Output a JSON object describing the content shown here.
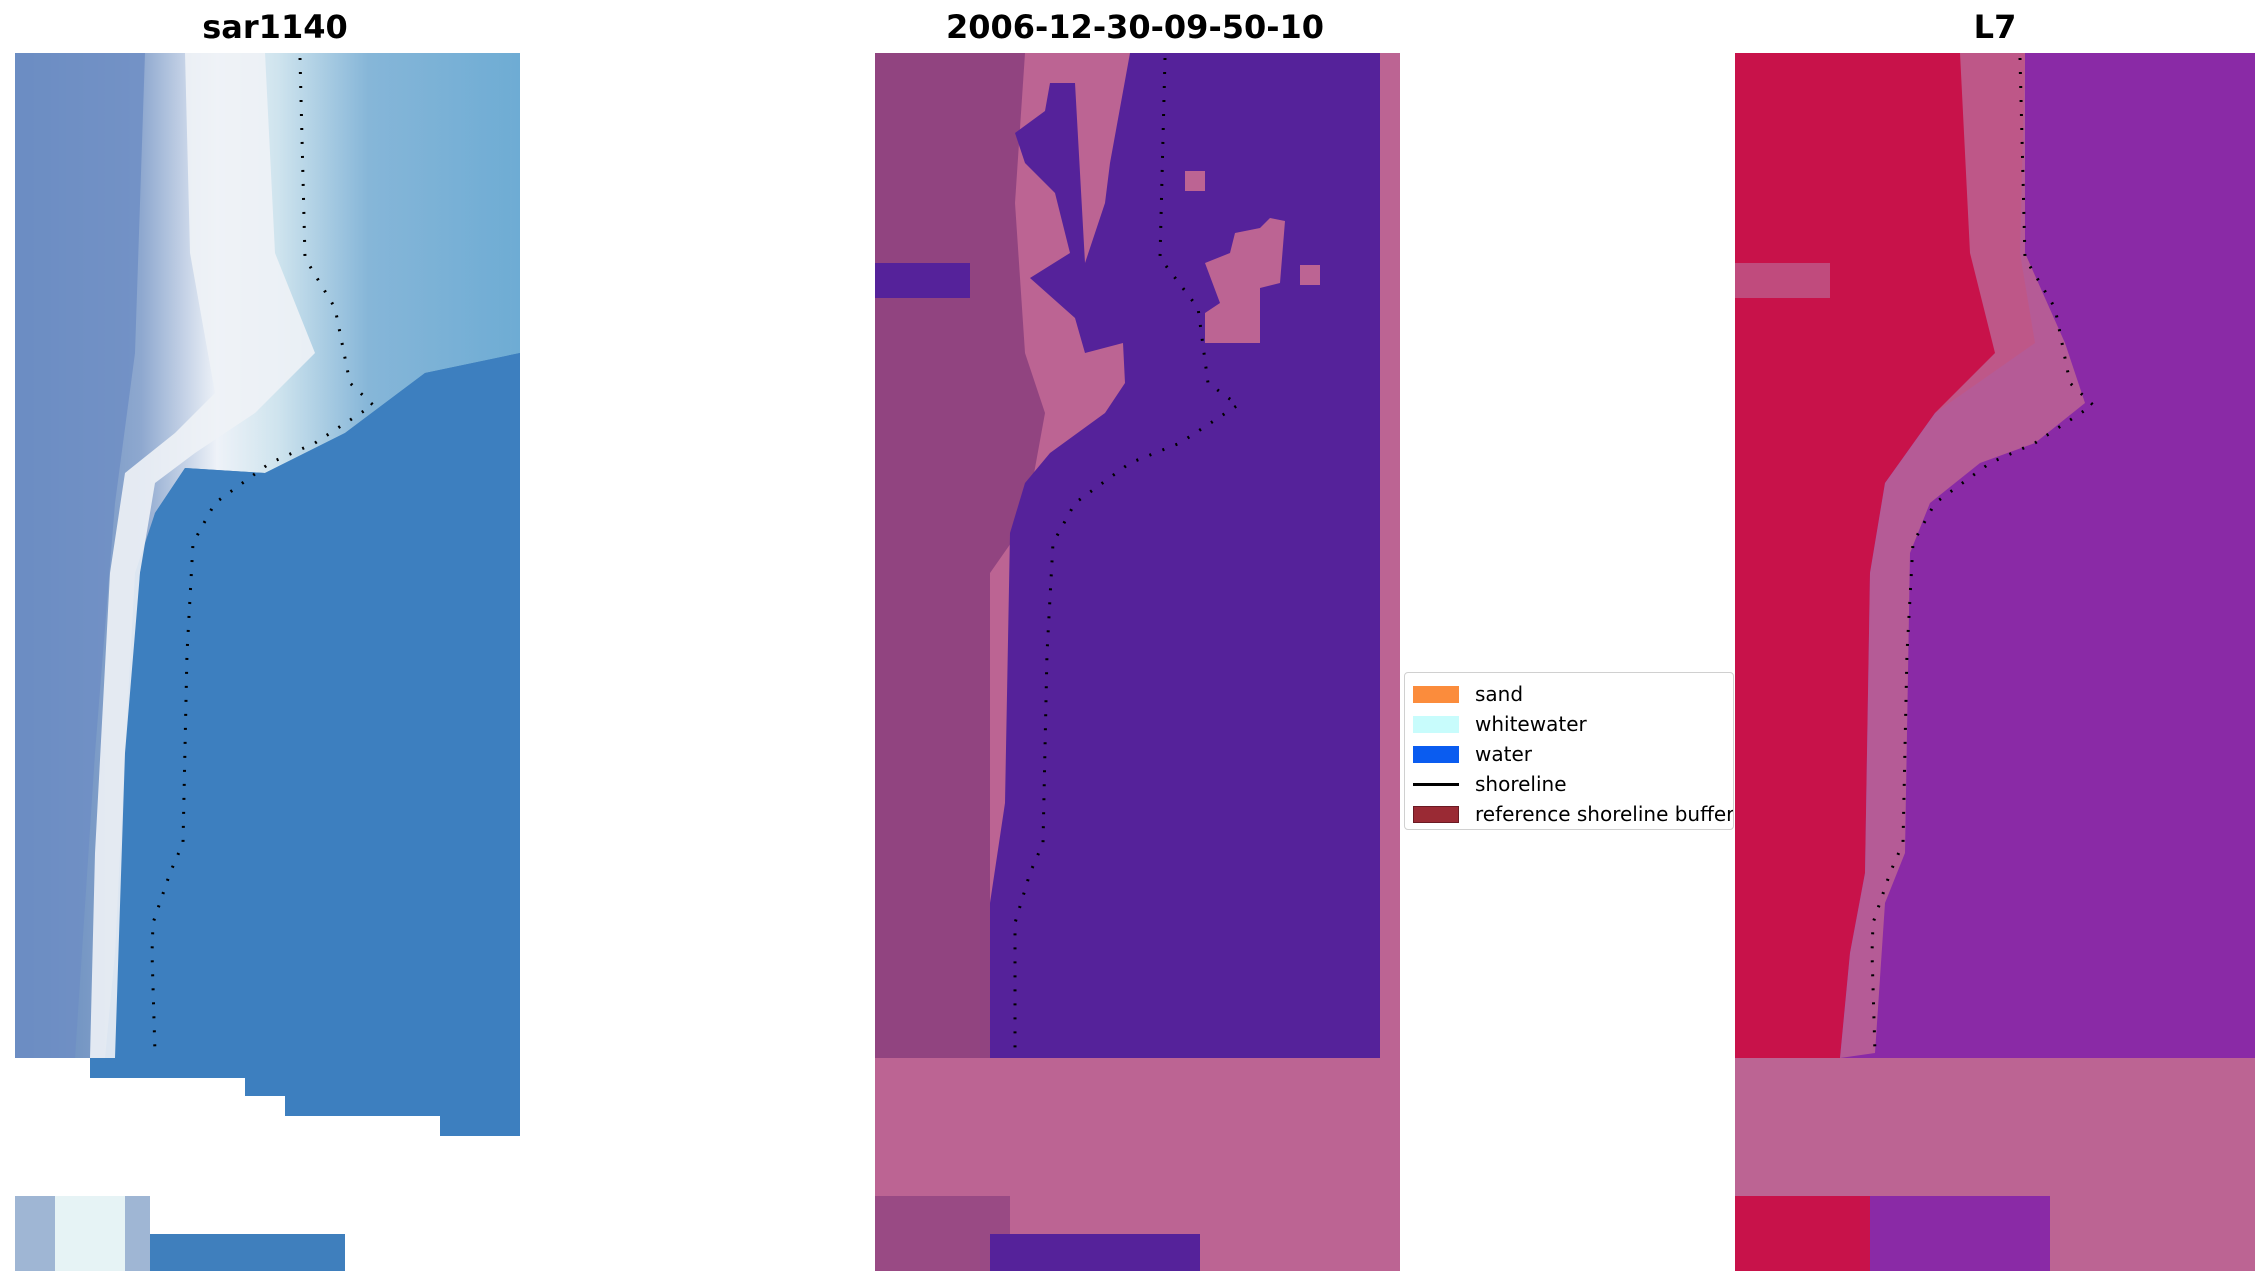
{
  "panels": [
    {
      "title": "sar1140"
    },
    {
      "title": "2006-12-30-09-50-10"
    },
    {
      "title": "L7"
    }
  ],
  "legend": {
    "items": [
      {
        "label": "sand",
        "color": "#fb8c3c",
        "kind": "patch"
      },
      {
        "label": "whitewater",
        "color": "#c8fcfc",
        "kind": "patch"
      },
      {
        "label": "water",
        "color": "#0a5cf0",
        "kind": "patch"
      },
      {
        "label": "shoreline",
        "color": "#000000",
        "kind": "line"
      },
      {
        "label": "reference shoreline buffer",
        "color": "#9a2a34",
        "kind": "patch"
      }
    ]
  },
  "colors": {
    "rgb_water": "#3f7fbd",
    "rgb_whitewater": "#eef2f6",
    "rgb_beach": "#7f9ac6",
    "class_water": "#55229a",
    "class_buffer": "#bc6493",
    "class_land": "#8a3e7d",
    "index_land": "#c8124a",
    "index_water": "#8a2aa6",
    "index_buffer": "#bc6493"
  }
}
